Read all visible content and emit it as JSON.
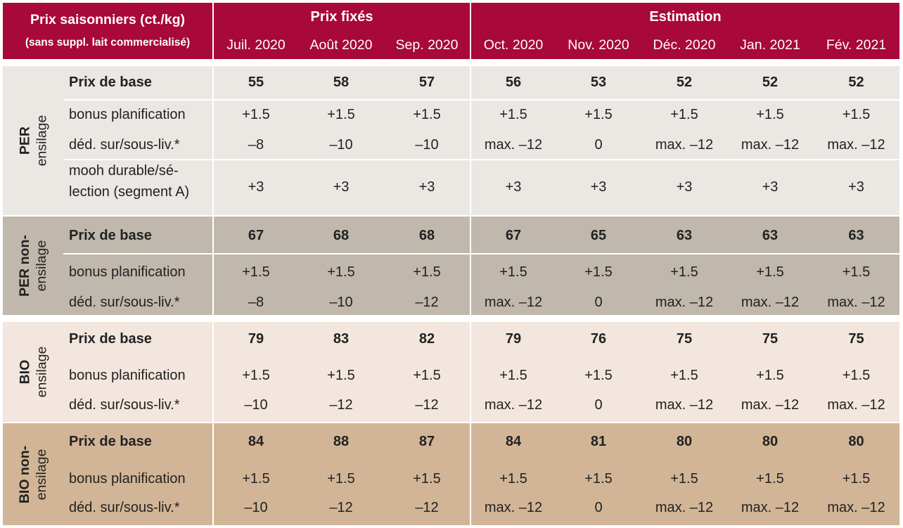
{
  "header": {
    "title": "Prix saisonniers (ct./kg)",
    "subtitle": "(sans suppl. lait commercialisé)",
    "group_fixed": "Prix fixés",
    "group_estimate": "Estimation",
    "months": [
      "Juil. 2020",
      "Août 2020",
      "Sep. 2020",
      "Oct. 2020",
      "Nov. 2020",
      "Déc. 2020",
      "Jan. 2021",
      "Fév. 2021"
    ]
  },
  "colors": {
    "header_bg": "#a8083a",
    "per_ensilage": "#ebe8e4",
    "per_non_ensilage": "#c0b8ac",
    "bio_ensilage": "#f2e6de",
    "bio_non_ensilage": "#d2b596"
  },
  "sections": [
    {
      "label_line1": "PER",
      "label_line2": "ensilage",
      "rows": [
        {
          "label": "Prix de base",
          "values": [
            "55",
            "58",
            "57",
            "56",
            "53",
            "52",
            "52",
            "52"
          ]
        },
        {
          "label": "bonus planification",
          "values": [
            "+1.5",
            "+1.5",
            "+1.5",
            "+1.5",
            "+1.5",
            "+1.5",
            "+1.5",
            "+1.5"
          ]
        },
        {
          "label": "déd. sur/sous-liv.*",
          "values": [
            "–8",
            "–10",
            "–10",
            "max. –12",
            "0",
            "max. –12",
            "max. –12",
            "max. –12"
          ]
        },
        {
          "label_line1": "mooh durable/sé-",
          "label_line2": "lection (segment A)",
          "values": [
            "+3",
            "+3",
            "+3",
            "+3",
            "+3",
            "+3",
            "+3",
            "+3"
          ]
        }
      ]
    },
    {
      "label_line1": "PER non-",
      "label_line2": "ensilage",
      "rows": [
        {
          "label": "Prix de base",
          "values": [
            "67",
            "68",
            "68",
            "67",
            "65",
            "63",
            "63",
            "63"
          ]
        },
        {
          "label": "bonus planification",
          "values": [
            "+1.5",
            "+1.5",
            "+1.5",
            "+1.5",
            "+1.5",
            "+1.5",
            "+1.5",
            "+1.5"
          ]
        },
        {
          "label": "déd. sur/sous-liv.*",
          "values": [
            "–8",
            "–10",
            "–12",
            "max. –12",
            "0",
            "max. –12",
            "max. –12",
            "max. –12"
          ]
        }
      ]
    },
    {
      "label_line1": "BIO",
      "label_line2": "ensilage",
      "rows": [
        {
          "label": "Prix de base",
          "values": [
            "79",
            "83",
            "82",
            "79",
            "76",
            "75",
            "75",
            "75"
          ]
        },
        {
          "label": "bonus planification",
          "values": [
            "+1.5",
            "+1.5",
            "+1.5",
            "+1.5",
            "+1.5",
            "+1.5",
            "+1.5",
            "+1.5"
          ]
        },
        {
          "label": "déd. sur/sous-liv.*",
          "values": [
            "–10",
            "–12",
            "–12",
            "max. –12",
            "0",
            "max. –12",
            "max. –12",
            "max. –12"
          ]
        }
      ]
    },
    {
      "label_line1": "BIO non-",
      "label_line2": "ensilage",
      "rows": [
        {
          "label": "Prix de base",
          "values": [
            "84",
            "88",
            "87",
            "84",
            "81",
            "80",
            "80",
            "80"
          ]
        },
        {
          "label": "bonus planification",
          "values": [
            "+1.5",
            "+1.5",
            "+1.5",
            "+1.5",
            "+1.5",
            "+1.5",
            "+1.5",
            "+1.5"
          ]
        },
        {
          "label": "déd. sur/sous-liv.*",
          "values": [
            "–10",
            "–12",
            "–12",
            "max. –12",
            "0",
            "max. –12",
            "max. –12",
            "max. –12"
          ]
        }
      ]
    }
  ]
}
